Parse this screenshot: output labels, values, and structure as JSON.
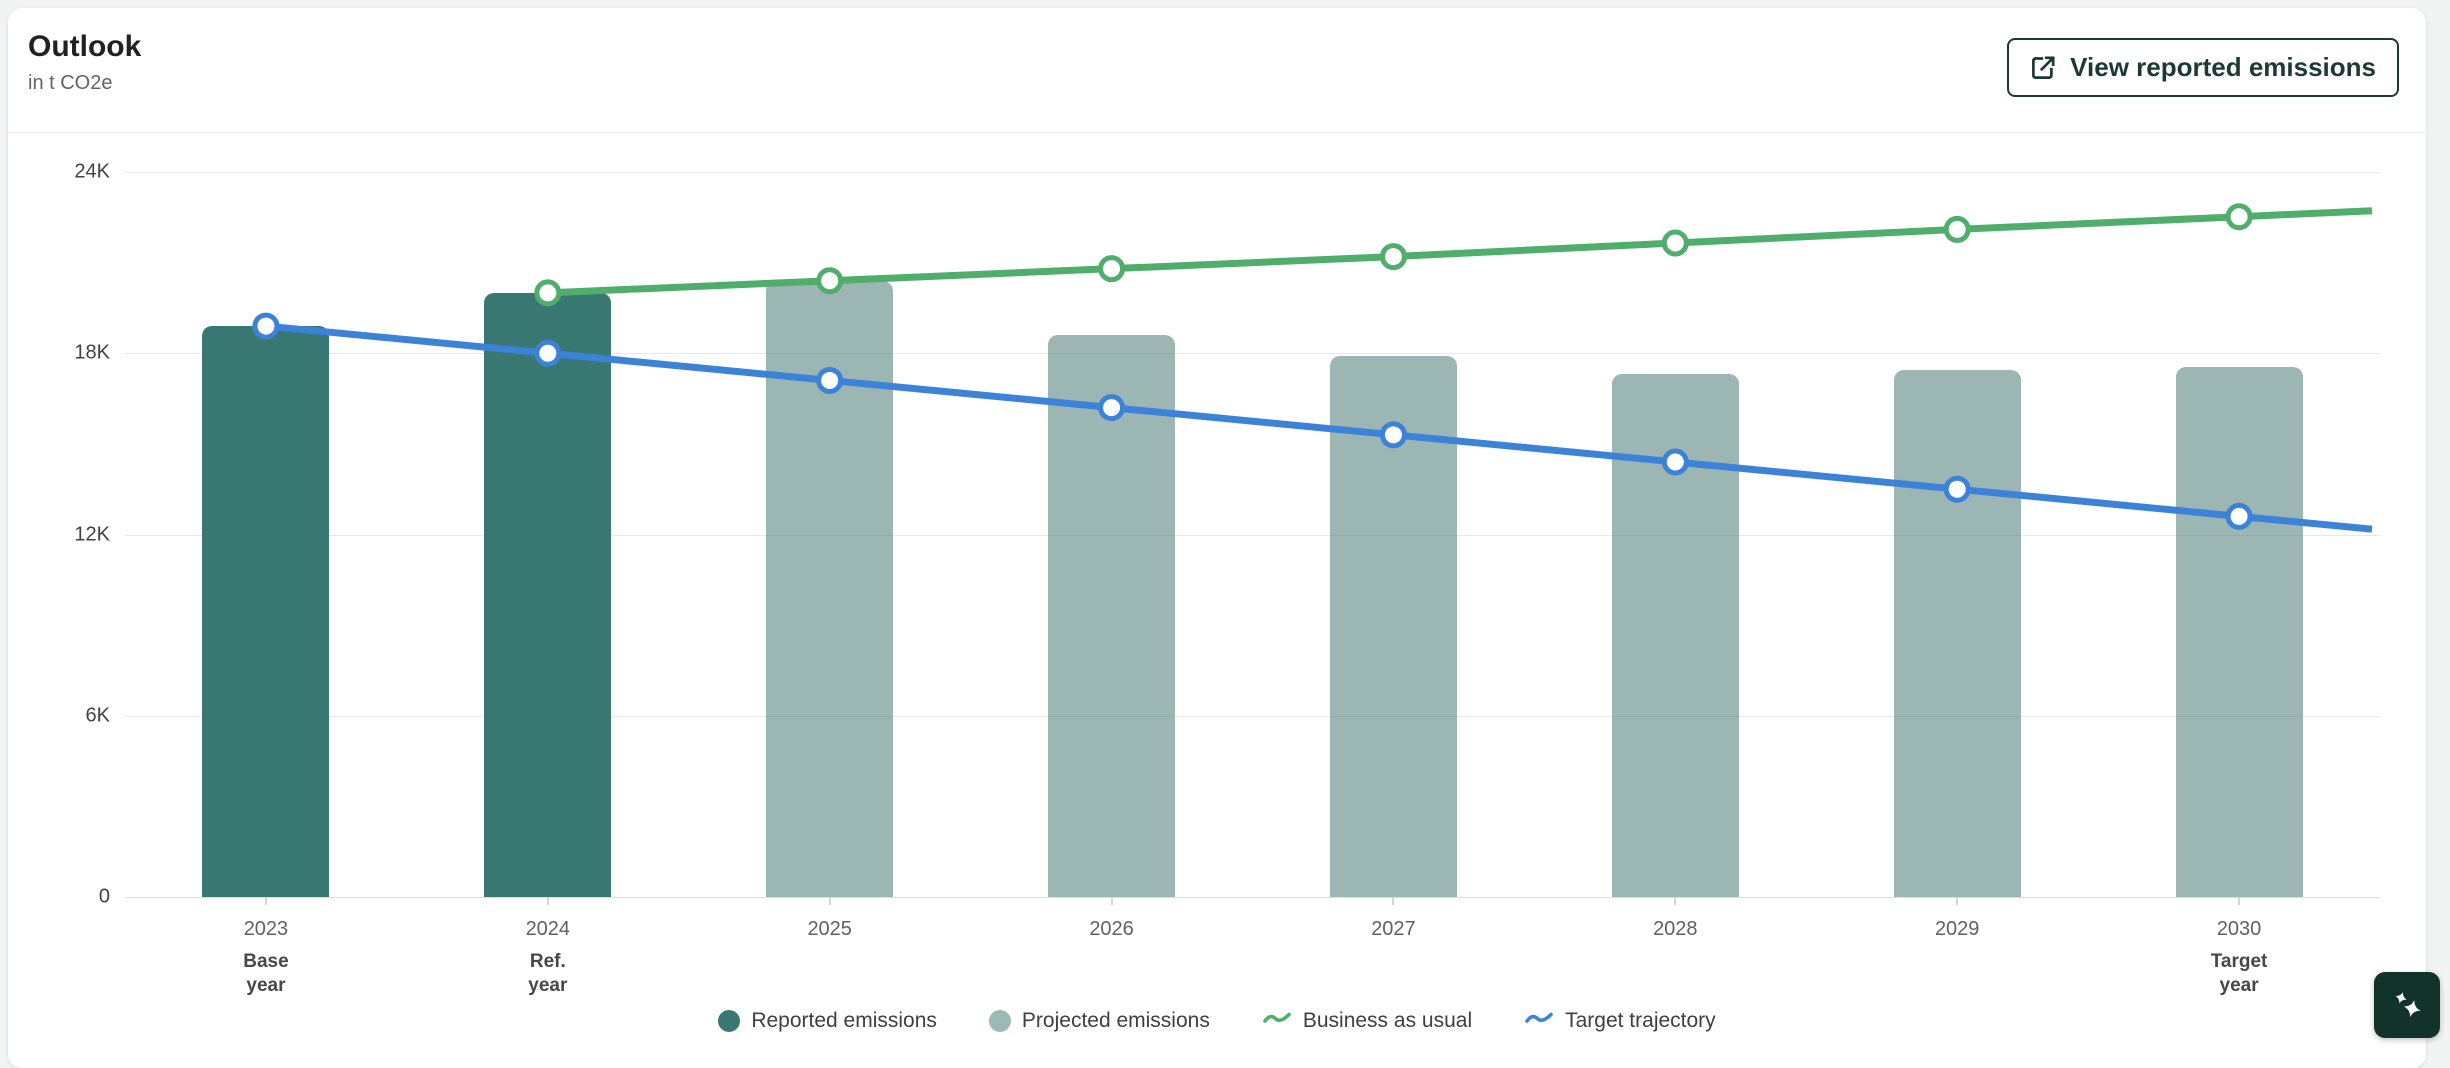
{
  "header": {
    "title": "Outlook",
    "subtitle": "in t CO2e",
    "view_button_label": "View reported emissions"
  },
  "colors": {
    "reported_bar": "#397872",
    "projected_bar": "#9bb9b6",
    "business_as_usual_line": "#4fae6c",
    "target_trajectory_line": "#3c82d9",
    "button_dark_green": "#1d3a32",
    "ai_button_bg": "#12332b"
  },
  "chart_data": {
    "type": "bar+line combo",
    "title": "Outlook",
    "unit": "t CO2e",
    "ylim": [
      0,
      24000
    ],
    "y_ticks": [
      {
        "value": 0,
        "label": "0"
      },
      {
        "value": 6000,
        "label": "6K"
      },
      {
        "value": 12000,
        "label": "12K"
      },
      {
        "value": 18000,
        "label": "18K"
      },
      {
        "value": 24000,
        "label": "24K"
      }
    ],
    "categories": [
      "2023",
      "2024",
      "2025",
      "2026",
      "2027",
      "2028",
      "2029",
      "2030"
    ],
    "category_sublabels": [
      "Base year",
      "Ref. year",
      "",
      "",
      "",
      "",
      "",
      "Target year"
    ],
    "bar_series": [
      {
        "name": "Reported emissions",
        "color": "#397872",
        "values": [
          18900,
          20000,
          null,
          null,
          null,
          null,
          null,
          null
        ]
      },
      {
        "name": "Projected emissions",
        "color": "#9bb9b6",
        "values": [
          null,
          null,
          20400,
          18600,
          17900,
          17300,
          17450,
          17550
        ]
      }
    ],
    "line_series": [
      {
        "name": "Business as usual",
        "color": "#4fae6c",
        "values": [
          null,
          20000,
          20400,
          20800,
          21200,
          21650,
          22100,
          22520
        ]
      },
      {
        "name": "Target trajectory",
        "color": "#3c82d9",
        "values": [
          18900,
          18000,
          17100,
          16200,
          15300,
          14400,
          13500,
          12600
        ]
      }
    ],
    "legend": [
      {
        "label": "Reported emissions",
        "swatch": "dot",
        "color": "#397872"
      },
      {
        "label": "Projected emissions",
        "swatch": "dot",
        "color": "#9bb9b6"
      },
      {
        "label": "Business as usual",
        "swatch": "wave",
        "color": "#4fae6c"
      },
      {
        "label": "Target trajectory",
        "swatch": "wave",
        "color": "#3c82d9"
      }
    ],
    "legend_position": "bottom-center",
    "grid": "horizontal"
  }
}
